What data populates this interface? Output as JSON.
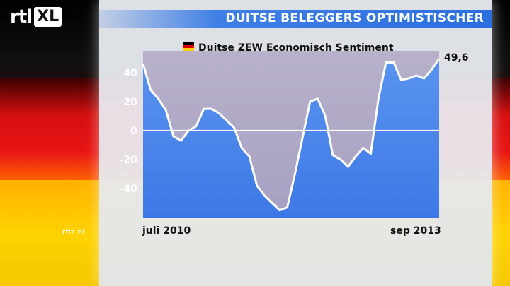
{
  "header": {
    "logo_text": "rtl",
    "logo_suffix": "XL",
    "title": "DUITSE BELEGGERS OPTIMISTISCHER"
  },
  "footer": {
    "source": "rtlz.nl"
  },
  "colors": {
    "accent": "#2b6fe0",
    "flag_black": "#000000",
    "flag_red": "#dd0000",
    "flag_gold": "#ffce00"
  },
  "chart_data": {
    "type": "line",
    "title": "Duitse ZEW Economisch Sentiment",
    "legend_icon": "german-flag-icon",
    "x_start_label": "juli 2010",
    "x_end_label": "sep 2013",
    "last_value_label": "49,6",
    "ylim": [
      -60,
      55
    ],
    "yticks": [
      40,
      20,
      0,
      -20,
      -40
    ],
    "grid": false,
    "series": [
      {
        "values": [
          46,
          28,
          22,
          14,
          -4,
          -7,
          0,
          3,
          15,
          15,
          12,
          7,
          2,
          -12,
          -18,
          -38,
          -45,
          -50,
          -55,
          -53,
          -30,
          -5,
          20,
          22,
          10,
          -17,
          -20,
          -25,
          -18,
          -12,
          -16,
          22,
          47,
          47,
          35,
          36,
          38,
          36,
          42,
          49.6
        ]
      }
    ]
  }
}
